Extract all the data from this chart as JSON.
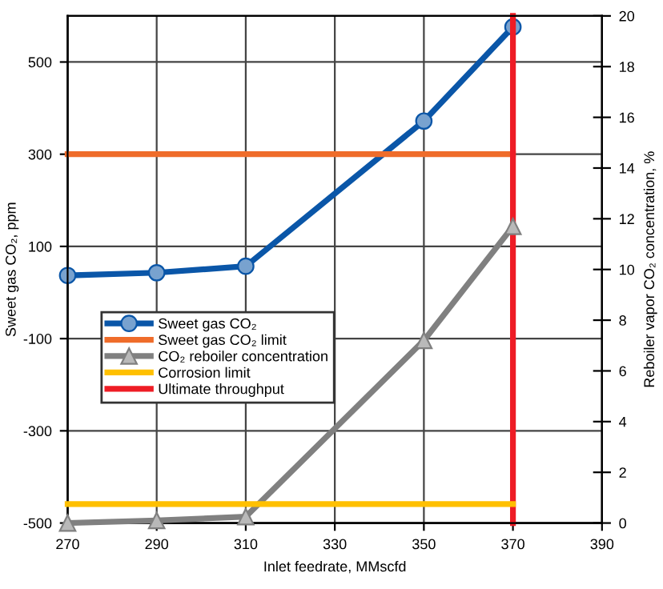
{
  "chart_data": {
    "type": "line",
    "xlabel": "Inlet feedrate, MMscfd",
    "ylabel": "Sweet gas CO₂, ppm",
    "y2label": "Reboiler vapor CO₂ concentration, %",
    "series": [
      {
        "name": "Sweet gas CO₂",
        "color": "#0a56a8",
        "x": [
          270,
          290,
          310,
          350,
          370
        ],
        "values": [
          37,
          43,
          57,
          372,
          576
        ],
        "marker": "circle"
      },
      {
        "name": "Sweet gas CO₂ limit",
        "color": "#ef6c2a",
        "x": [
          270,
          370
        ],
        "values": [
          300,
          300
        ],
        "marker": "none"
      },
      {
        "name": "CO₂ reboiler concentration",
        "color": "#808080",
        "x": [
          270,
          290,
          310,
          350,
          370
        ],
        "values": [
          0.0,
          0.1,
          0.25,
          7.2,
          11.7
        ],
        "axis": "y2",
        "marker": "triangle"
      },
      {
        "name": "Corrosion limit",
        "color": "#ffc000",
        "x": [
          270,
          370
        ],
        "values": [
          0.75,
          0.75
        ],
        "axis": "y2",
        "marker": "none"
      },
      {
        "name": "Ultimate throughput",
        "color": "#ee1c25",
        "x": [
          370,
          370
        ],
        "values": [
          -500,
          600
        ],
        "marker": "none"
      }
    ],
    "xlim": [
      270,
      390
    ],
    "xticks": [
      270,
      290,
      310,
      330,
      350,
      370,
      390
    ],
    "ylim": [
      -500,
      600
    ],
    "yticks": [
      -500,
      -300,
      -100,
      100,
      300,
      500
    ],
    "y2lim": [
      0,
      20
    ],
    "y2ticks": [
      0,
      2,
      4,
      6,
      8,
      10,
      12,
      14,
      16,
      18,
      20
    ],
    "grid": true,
    "legend": "left",
    "line_style": "solid"
  }
}
